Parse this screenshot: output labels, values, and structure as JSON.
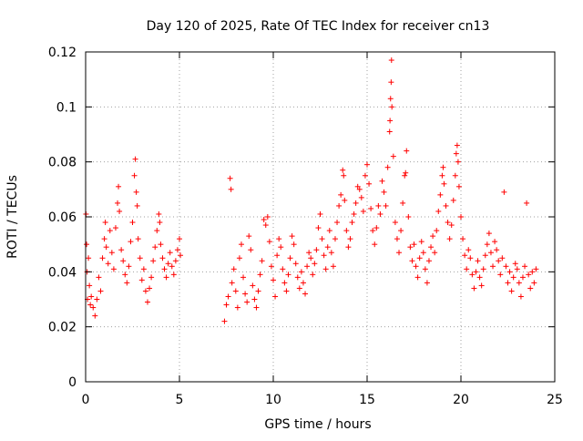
{
  "chart_data": {
    "type": "scatter",
    "title": "Day 120 of 2025, Rate Of TEC Index for receiver cn13",
    "xlabel": "GPS time / hours",
    "ylabel": "ROTI / TECUs",
    "xlim": [
      0,
      25
    ],
    "ylim": [
      0,
      0.12
    ],
    "xticks": [
      0,
      5,
      10,
      15,
      20,
      25
    ],
    "xtick_labels": [
      "0",
      "5",
      "10",
      "15",
      "20",
      "25"
    ],
    "yticks": [
      0,
      0.02,
      0.04,
      0.06,
      0.08,
      0.1,
      0.12
    ],
    "ytick_labels": [
      "0",
      "0.02",
      "0.04",
      "0.06",
      "0.08",
      "0.1",
      "0.12"
    ],
    "grid": true,
    "marker": "+",
    "color": "#ff0000",
    "series": [
      {
        "name": "ROTI",
        "points": [
          [
            0.02,
            0.061
          ],
          [
            0.05,
            0.05
          ],
          [
            0.08,
            0.04
          ],
          [
            0.1,
            0.03
          ],
          [
            0.15,
            0.045
          ],
          [
            0.2,
            0.035
          ],
          [
            0.25,
            0.028
          ],
          [
            0.3,
            0.031
          ],
          [
            0.4,
            0.027
          ],
          [
            0.5,
            0.024
          ],
          [
            0.6,
            0.03
          ],
          [
            0.7,
            0.038
          ],
          [
            0.8,
            0.033
          ],
          [
            0.9,
            0.045
          ],
          [
            1.0,
            0.052
          ],
          [
            1.05,
            0.058
          ],
          [
            1.1,
            0.049
          ],
          [
            1.2,
            0.043
          ],
          [
            1.3,
            0.055
          ],
          [
            1.4,
            0.047
          ],
          [
            1.5,
            0.041
          ],
          [
            1.6,
            0.056
          ],
          [
            1.7,
            0.065
          ],
          [
            1.75,
            0.071
          ],
          [
            1.8,
            0.062
          ],
          [
            1.9,
            0.048
          ],
          [
            2.0,
            0.044
          ],
          [
            2.1,
            0.039
          ],
          [
            2.2,
            0.036
          ],
          [
            2.3,
            0.042
          ],
          [
            2.4,
            0.051
          ],
          [
            2.5,
            0.058
          ],
          [
            2.6,
            0.075
          ],
          [
            2.65,
            0.081
          ],
          [
            2.7,
            0.069
          ],
          [
            2.75,
            0.064
          ],
          [
            2.8,
            0.052
          ],
          [
            2.9,
            0.045
          ],
          [
            3.0,
            0.037
          ],
          [
            3.1,
            0.041
          ],
          [
            3.2,
            0.033
          ],
          [
            3.3,
            0.029
          ],
          [
            3.4,
            0.034
          ],
          [
            3.5,
            0.038
          ],
          [
            3.6,
            0.044
          ],
          [
            3.7,
            0.049
          ],
          [
            3.8,
            0.055
          ],
          [
            3.9,
            0.061
          ],
          [
            3.95,
            0.058
          ],
          [
            4.0,
            0.05
          ],
          [
            4.1,
            0.045
          ],
          [
            4.2,
            0.041
          ],
          [
            4.3,
            0.038
          ],
          [
            4.4,
            0.043
          ],
          [
            4.5,
            0.047
          ],
          [
            4.6,
            0.042
          ],
          [
            4.7,
            0.039
          ],
          [
            4.8,
            0.044
          ],
          [
            4.9,
            0.048
          ],
          [
            5.0,
            0.052
          ],
          [
            5.05,
            0.046
          ],
          [
            7.4,
            0.022
          ],
          [
            7.5,
            0.028
          ],
          [
            7.6,
            0.031
          ],
          [
            7.7,
            0.074
          ],
          [
            7.75,
            0.07
          ],
          [
            7.8,
            0.036
          ],
          [
            7.9,
            0.041
          ],
          [
            8.0,
            0.033
          ],
          [
            8.1,
            0.027
          ],
          [
            8.2,
            0.045
          ],
          [
            8.3,
            0.05
          ],
          [
            8.4,
            0.038
          ],
          [
            8.5,
            0.032
          ],
          [
            8.6,
            0.029
          ],
          [
            8.7,
            0.053
          ],
          [
            8.8,
            0.048
          ],
          [
            8.9,
            0.035
          ],
          [
            9.0,
            0.03
          ],
          [
            9.1,
            0.027
          ],
          [
            9.2,
            0.033
          ],
          [
            9.3,
            0.039
          ],
          [
            9.4,
            0.044
          ],
          [
            9.5,
            0.059
          ],
          [
            9.6,
            0.057
          ],
          [
            9.7,
            0.06
          ],
          [
            9.8,
            0.051
          ],
          [
            9.9,
            0.042
          ],
          [
            10.0,
            0.037
          ],
          [
            10.1,
            0.031
          ],
          [
            10.2,
            0.046
          ],
          [
            10.3,
            0.052
          ],
          [
            10.4,
            0.049
          ],
          [
            10.5,
            0.041
          ],
          [
            10.6,
            0.036
          ],
          [
            10.7,
            0.033
          ],
          [
            10.8,
            0.039
          ],
          [
            10.9,
            0.045
          ],
          [
            11.0,
            0.053
          ],
          [
            11.1,
            0.05
          ],
          [
            11.2,
            0.043
          ],
          [
            11.3,
            0.038
          ],
          [
            11.4,
            0.034
          ],
          [
            11.5,
            0.04
          ],
          [
            11.6,
            0.036
          ],
          [
            11.7,
            0.032
          ],
          [
            11.8,
            0.042
          ],
          [
            11.9,
            0.047
          ],
          [
            12.0,
            0.045
          ],
          [
            12.1,
            0.039
          ],
          [
            12.2,
            0.043
          ],
          [
            12.3,
            0.048
          ],
          [
            12.4,
            0.056
          ],
          [
            12.5,
            0.061
          ],
          [
            12.6,
            0.052
          ],
          [
            12.7,
            0.046
          ],
          [
            12.8,
            0.041
          ],
          [
            12.9,
            0.049
          ],
          [
            13.0,
            0.055
          ],
          [
            13.1,
            0.047
          ],
          [
            13.2,
            0.042
          ],
          [
            13.3,
            0.052
          ],
          [
            13.4,
            0.058
          ],
          [
            13.5,
            0.064
          ],
          [
            13.6,
            0.068
          ],
          [
            13.7,
            0.077
          ],
          [
            13.75,
            0.075
          ],
          [
            13.8,
            0.066
          ],
          [
            13.9,
            0.055
          ],
          [
            14.0,
            0.049
          ],
          [
            14.1,
            0.052
          ],
          [
            14.2,
            0.058
          ],
          [
            14.3,
            0.061
          ],
          [
            14.4,
            0.065
          ],
          [
            14.5,
            0.071
          ],
          [
            14.6,
            0.07
          ],
          [
            14.7,
            0.067
          ],
          [
            14.8,
            0.062
          ],
          [
            14.9,
            0.075
          ],
          [
            15.0,
            0.079
          ],
          [
            15.1,
            0.072
          ],
          [
            15.2,
            0.063
          ],
          [
            15.3,
            0.055
          ],
          [
            15.4,
            0.05
          ],
          [
            15.5,
            0.056
          ],
          [
            15.6,
            0.064
          ],
          [
            15.7,
            0.061
          ],
          [
            15.8,
            0.073
          ],
          [
            15.9,
            0.069
          ],
          [
            16.0,
            0.064
          ],
          [
            16.1,
            0.078
          ],
          [
            16.2,
            0.091
          ],
          [
            16.22,
            0.095
          ],
          [
            16.25,
            0.103
          ],
          [
            16.28,
            0.109
          ],
          [
            16.3,
            0.117
          ],
          [
            16.32,
            0.1
          ],
          [
            16.4,
            0.082
          ],
          [
            16.5,
            0.058
          ],
          [
            16.6,
            0.052
          ],
          [
            16.7,
            0.047
          ],
          [
            16.8,
            0.055
          ],
          [
            16.9,
            0.065
          ],
          [
            17.0,
            0.075
          ],
          [
            17.05,
            0.076
          ],
          [
            17.1,
            0.084
          ],
          [
            17.2,
            0.06
          ],
          [
            17.3,
            0.049
          ],
          [
            17.4,
            0.044
          ],
          [
            17.5,
            0.05
          ],
          [
            17.6,
            0.042
          ],
          [
            17.7,
            0.038
          ],
          [
            17.8,
            0.045
          ],
          [
            17.9,
            0.051
          ],
          [
            18.0,
            0.047
          ],
          [
            18.1,
            0.041
          ],
          [
            18.2,
            0.036
          ],
          [
            18.3,
            0.044
          ],
          [
            18.4,
            0.049
          ],
          [
            18.5,
            0.053
          ],
          [
            18.6,
            0.047
          ],
          [
            18.7,
            0.055
          ],
          [
            18.8,
            0.062
          ],
          [
            18.9,
            0.068
          ],
          [
            19.0,
            0.075
          ],
          [
            19.05,
            0.078
          ],
          [
            19.1,
            0.072
          ],
          [
            19.2,
            0.064
          ],
          [
            19.3,
            0.058
          ],
          [
            19.4,
            0.052
          ],
          [
            19.5,
            0.057
          ],
          [
            19.6,
            0.066
          ],
          [
            19.7,
            0.075
          ],
          [
            19.75,
            0.083
          ],
          [
            19.8,
            0.086
          ],
          [
            19.85,
            0.08
          ],
          [
            19.9,
            0.071
          ],
          [
            20.0,
            0.06
          ],
          [
            20.1,
            0.052
          ],
          [
            20.2,
            0.046
          ],
          [
            20.3,
            0.041
          ],
          [
            20.4,
            0.048
          ],
          [
            20.5,
            0.045
          ],
          [
            20.6,
            0.039
          ],
          [
            20.7,
            0.034
          ],
          [
            20.8,
            0.04
          ],
          [
            20.9,
            0.044
          ],
          [
            21.0,
            0.038
          ],
          [
            21.1,
            0.035
          ],
          [
            21.2,
            0.041
          ],
          [
            21.3,
            0.046
          ],
          [
            21.4,
            0.05
          ],
          [
            21.5,
            0.054
          ],
          [
            21.6,
            0.047
          ],
          [
            21.7,
            0.042
          ],
          [
            21.8,
            0.051
          ],
          [
            21.9,
            0.048
          ],
          [
            22.0,
            0.044
          ],
          [
            22.1,
            0.039
          ],
          [
            22.2,
            0.045
          ],
          [
            22.3,
            0.069
          ],
          [
            22.4,
            0.042
          ],
          [
            22.5,
            0.036
          ],
          [
            22.6,
            0.04
          ],
          [
            22.7,
            0.033
          ],
          [
            22.8,
            0.038
          ],
          [
            22.9,
            0.043
          ],
          [
            23.0,
            0.041
          ],
          [
            23.1,
            0.036
          ],
          [
            23.2,
            0.031
          ],
          [
            23.3,
            0.038
          ],
          [
            23.4,
            0.042
          ],
          [
            23.5,
            0.065
          ],
          [
            23.6,
            0.039
          ],
          [
            23.7,
            0.034
          ],
          [
            23.8,
            0.04
          ],
          [
            23.9,
            0.036
          ],
          [
            24.0,
            0.041
          ]
        ]
      }
    ]
  }
}
